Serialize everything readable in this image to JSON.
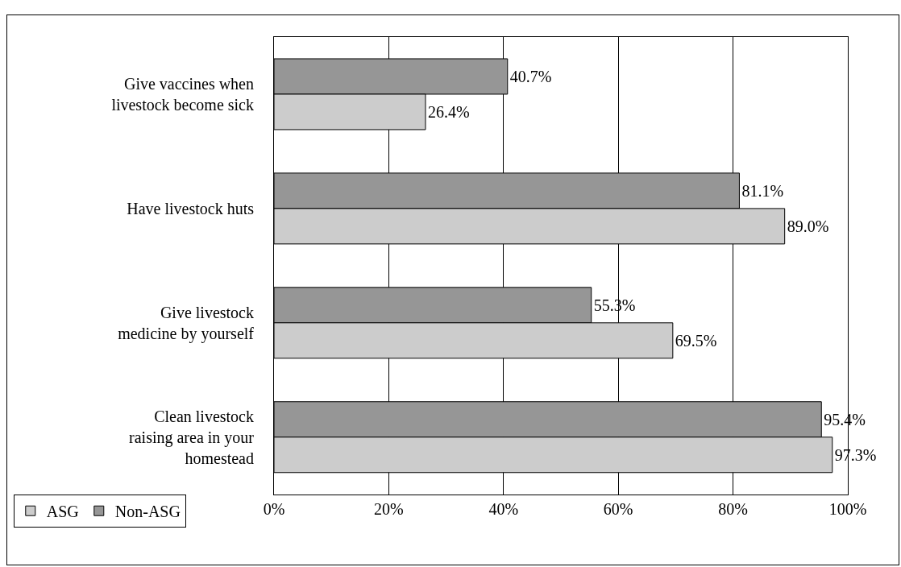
{
  "chart_data": {
    "type": "bar",
    "orientation": "horizontal",
    "categories": [
      "Give vaccines when livestock become sick",
      "Have livestock huts",
      "Give livestock medicine by yourself",
      "Clean livestock raising area in your homestead"
    ],
    "series": [
      {
        "name": "ASG",
        "color": "#cccccc",
        "values": [
          26.4,
          89.0,
          69.5,
          97.3
        ],
        "value_labels": [
          "26.4%",
          "89.0%",
          "69.5%",
          "97.3%"
        ]
      },
      {
        "name": "Non-ASG",
        "color": "#969696",
        "values": [
          40.7,
          81.1,
          55.3,
          95.4
        ],
        "value_labels": [
          "40.7%",
          "81.1%",
          "55.3%",
          "95.4%"
        ]
      }
    ],
    "xlim": [
      0,
      100
    ],
    "xticks": [
      {
        "value": 0,
        "label": "0%"
      },
      {
        "value": 20,
        "label": "20%"
      },
      {
        "value": 40,
        "label": "40%"
      },
      {
        "value": 60,
        "label": "60%"
      },
      {
        "value": 80,
        "label": "80%"
      },
      {
        "value": 100,
        "label": "100%"
      }
    ],
    "grid": "x",
    "legend": "bottom left"
  }
}
